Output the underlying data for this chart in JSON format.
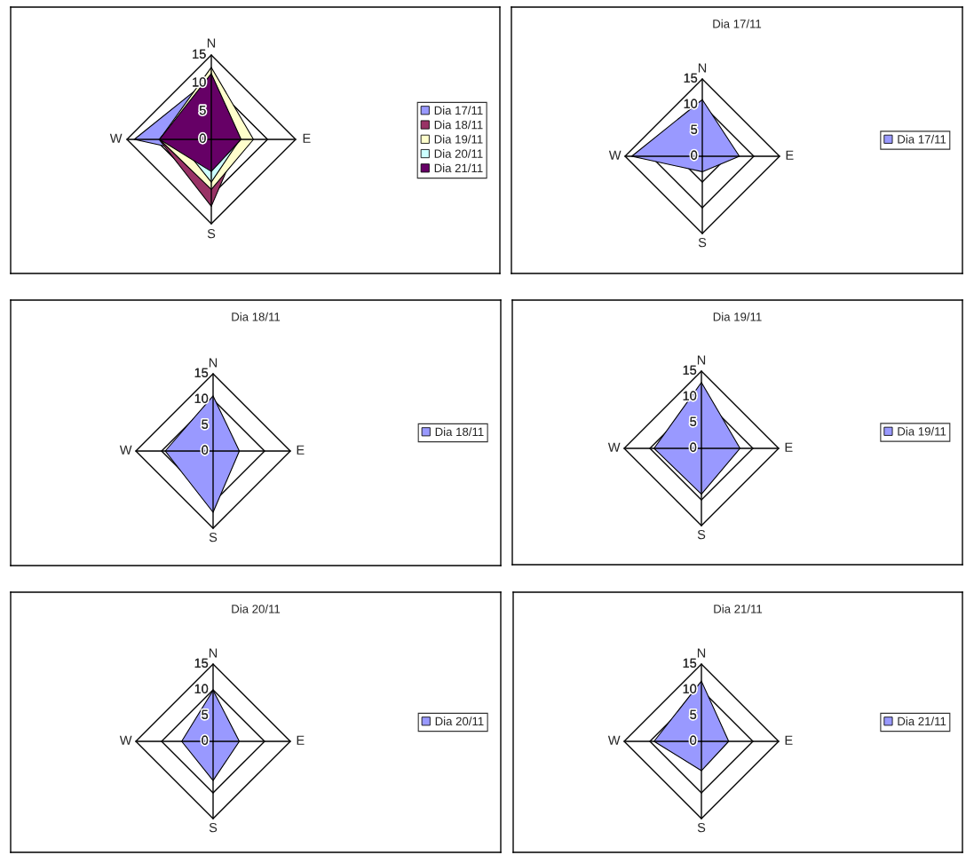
{
  "chart_data": [
    {
      "type": "radar",
      "categories": [
        "N",
        "E",
        "S",
        "W"
      ],
      "ylim": [
        0,
        15
      ],
      "yticks": [
        0,
        5,
        10,
        15
      ],
      "grid": true,
      "legend": "right",
      "series": [
        {
          "name": "Dia 17/11",
          "color": "#9999ff",
          "values": [
            11.0,
            7.2,
            3.0,
            13.7
          ]
        },
        {
          "name": "Dia 18/11",
          "color": "#993366",
          "values": [
            10.7,
            5.1,
            11.9,
            9.3
          ]
        },
        {
          "name": "Dia 19/11",
          "color": "#ffffcc",
          "values": [
            12.8,
            7.5,
            8.9,
            9.2
          ]
        },
        {
          "name": "Dia 20/11",
          "color": "#ccffff",
          "values": [
            9.9,
            5.1,
            7.6,
            6.1
          ]
        },
        {
          "name": "Dia 21/11",
          "color": "#660066",
          "values": [
            11.7,
            5.3,
            5.7,
            9.2
          ]
        }
      ]
    },
    {
      "type": "radar",
      "title": "Dia 17/11",
      "categories": [
        "N",
        "E",
        "S",
        "W"
      ],
      "ylim": [
        0,
        15
      ],
      "yticks": [
        0,
        5,
        10,
        15
      ],
      "grid": true,
      "legend": "right",
      "series": [
        {
          "name": "Dia 17/11",
          "color": "#9999ff",
          "values": [
            11.0,
            7.2,
            3.0,
            13.7
          ]
        }
      ]
    },
    {
      "type": "radar",
      "title": "Dia 18/11",
      "categories": [
        "N",
        "E",
        "S",
        "W"
      ],
      "ylim": [
        0,
        15
      ],
      "yticks": [
        0,
        5,
        10,
        15
      ],
      "grid": true,
      "legend": "right",
      "series": [
        {
          "name": "Dia 18/11",
          "color": "#9999ff",
          "values": [
            10.7,
            5.1,
            11.9,
            9.3
          ]
        }
      ]
    },
    {
      "type": "radar",
      "title": "Dia 19/11",
      "categories": [
        "N",
        "E",
        "S",
        "W"
      ],
      "ylim": [
        0,
        15
      ],
      "yticks": [
        0,
        5,
        10,
        15
      ],
      "grid": true,
      "legend": "right",
      "series": [
        {
          "name": "Dia 19/11",
          "color": "#9999ff",
          "values": [
            12.8,
            7.5,
            8.9,
            9.2
          ]
        }
      ]
    },
    {
      "type": "radar",
      "title": "Dia 20/11",
      "categories": [
        "N",
        "E",
        "S",
        "W"
      ],
      "ylim": [
        0,
        15
      ],
      "yticks": [
        0,
        5,
        10,
        15
      ],
      "grid": true,
      "legend": "right",
      "series": [
        {
          "name": "Dia 20/11",
          "color": "#9999ff",
          "values": [
            9.9,
            5.1,
            7.6,
            6.1
          ]
        }
      ]
    },
    {
      "type": "radar",
      "title": "Dia 21/11",
      "categories": [
        "N",
        "E",
        "S",
        "W"
      ],
      "ylim": [
        0,
        15
      ],
      "yticks": [
        0,
        5,
        10,
        15
      ],
      "grid": true,
      "legend": "right",
      "series": [
        {
          "name": "Dia 21/11",
          "color": "#9999ff",
          "values": [
            11.7,
            5.3,
            5.7,
            9.2
          ]
        }
      ]
    }
  ]
}
